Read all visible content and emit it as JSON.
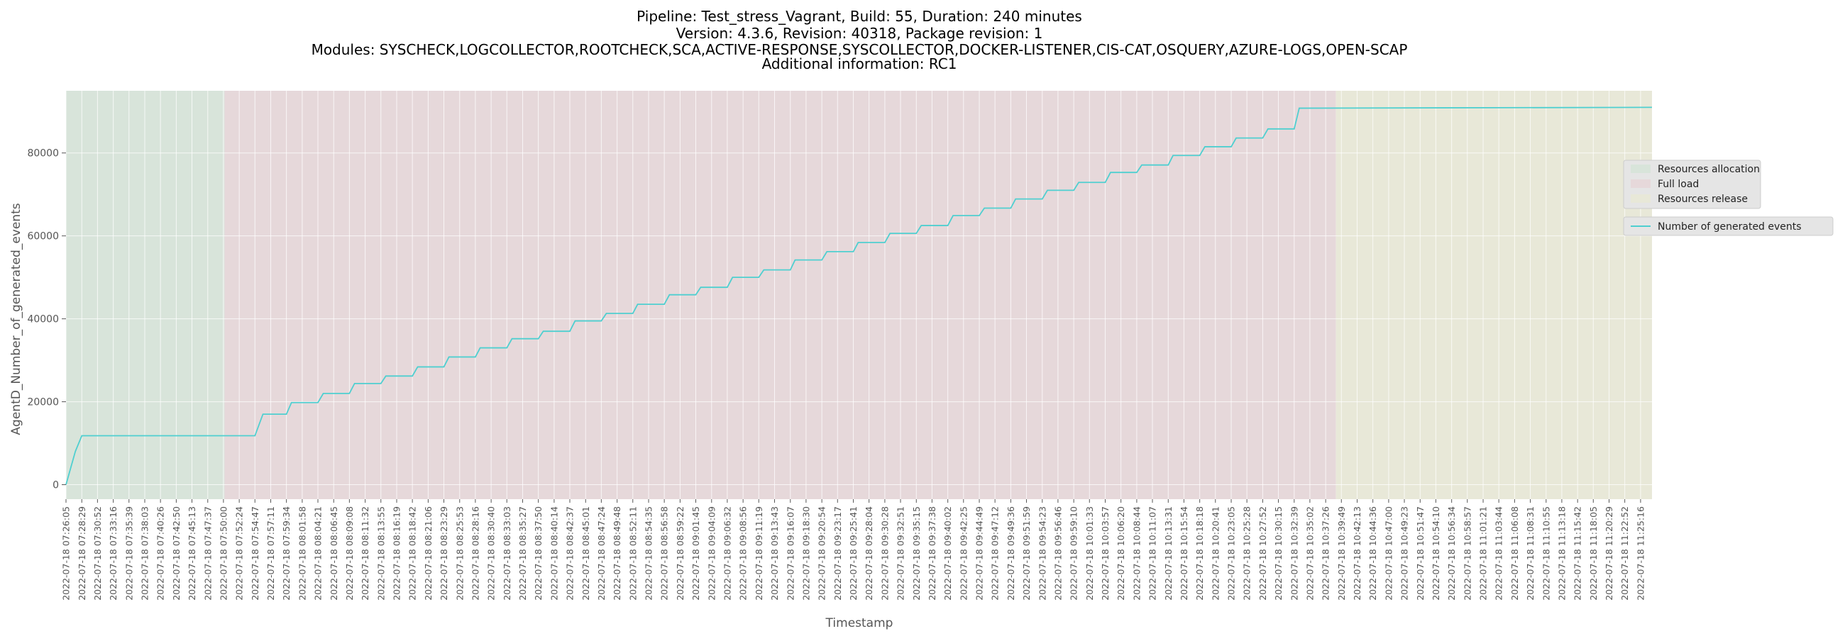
{
  "chart_data": {
    "type": "line",
    "title_lines": [
      "Pipeline: Test_stress_Vagrant, Build: 55, Duration: 240 minutes",
      "Version: 4.3.6, Revision: 40318, Package revision: 1",
      "Modules: SYSCHECK,LOGCOLLECTOR,ROOTCHECK,SCA,ACTIVE-RESPONSE,SYSCOLLECTOR,DOCKER-LISTENER,CIS-CAT,OSQUERY,AZURE-LOGS,OPEN-SCAP",
      "Additional information: RC1"
    ],
    "xlabel": "Timestamp",
    "ylabel": "AgentD_Number_of_generated_events",
    "ylim": [
      -3500,
      95000
    ],
    "y_ticks": [
      0,
      20000,
      40000,
      60000,
      80000
    ],
    "x_range": [
      "2022-07-18 07:26:05",
      "2022-07-18 11:27:00"
    ],
    "x_tick_labels": [
      "2022-07-18 07:26:05",
      "2022-07-18 07:28:29",
      "2022-07-18 07:30:52",
      "2022-07-18 07:33:16",
      "2022-07-18 07:35:39",
      "2022-07-18 07:38:03",
      "2022-07-18 07:40:26",
      "2022-07-18 07:42:50",
      "2022-07-18 07:45:13",
      "2022-07-18 07:47:37",
      "2022-07-18 07:50:00",
      "2022-07-18 07:52:24",
      "2022-07-18 07:54:47",
      "2022-07-18 07:57:11",
      "2022-07-18 07:59:34",
      "2022-07-18 08:01:58",
      "2022-07-18 08:04:21",
      "2022-07-18 08:06:45",
      "2022-07-18 08:09:08",
      "2022-07-18 08:11:32",
      "2022-07-18 08:13:55",
      "2022-07-18 08:16:19",
      "2022-07-18 08:18:42",
      "2022-07-18 08:21:06",
      "2022-07-18 08:23:29",
      "2022-07-18 08:25:53",
      "2022-07-18 08:28:16",
      "2022-07-18 08:30:40",
      "2022-07-18 08:33:03",
      "2022-07-18 08:35:27",
      "2022-07-18 08:37:50",
      "2022-07-18 08:40:14",
      "2022-07-18 08:42:37",
      "2022-07-18 08:45:01",
      "2022-07-18 08:47:24",
      "2022-07-18 08:49:48",
      "2022-07-18 08:52:11",
      "2022-07-18 08:54:35",
      "2022-07-18 08:56:58",
      "2022-07-18 08:59:22",
      "2022-07-18 09:01:45",
      "2022-07-18 09:04:09",
      "2022-07-18 09:06:32",
      "2022-07-18 09:08:56",
      "2022-07-18 09:11:19",
      "2022-07-18 09:13:43",
      "2022-07-18 09:16:07",
      "2022-07-18 09:18:30",
      "2022-07-18 09:20:54",
      "2022-07-18 09:23:17",
      "2022-07-18 09:25:41",
      "2022-07-18 09:28:04",
      "2022-07-18 09:30:28",
      "2022-07-18 09:32:51",
      "2022-07-18 09:35:15",
      "2022-07-18 09:37:38",
      "2022-07-18 09:40:02",
      "2022-07-18 09:42:25",
      "2022-07-18 09:44:49",
      "2022-07-18 09:47:12",
      "2022-07-18 09:49:36",
      "2022-07-18 09:51:59",
      "2022-07-18 09:54:23",
      "2022-07-18 09:56:46",
      "2022-07-18 09:59:10",
      "2022-07-18 10:01:33",
      "2022-07-18 10:03:57",
      "2022-07-18 10:06:20",
      "2022-07-18 10:08:44",
      "2022-07-18 10:11:07",
      "2022-07-18 10:13:31",
      "2022-07-18 10:15:54",
      "2022-07-18 10:18:18",
      "2022-07-18 10:20:41",
      "2022-07-18 10:23:05",
      "2022-07-18 10:25:28",
      "2022-07-18 10:27:52",
      "2022-07-18 10:30:15",
      "2022-07-18 10:32:39",
      "2022-07-18 10:35:02",
      "2022-07-18 10:37:26",
      "2022-07-18 10:39:49",
      "2022-07-18 10:42:13",
      "2022-07-18 10:44:36",
      "2022-07-18 10:47:00",
      "2022-07-18 10:49:23",
      "2022-07-18 10:51:47",
      "2022-07-18 10:54:10",
      "2022-07-18 10:56:34",
      "2022-07-18 10:58:57",
      "2022-07-18 11:01:21",
      "2022-07-18 11:03:44",
      "2022-07-18 11:06:08",
      "2022-07-18 11:08:31",
      "2022-07-18 11:10:55",
      "2022-07-18 11:13:18",
      "2022-07-18 11:15:42",
      "2022-07-18 11:18:05",
      "2022-07-18 11:20:29",
      "2022-07-18 11:22:52",
      "2022-07-18 11:25:16"
    ],
    "phases": [
      {
        "name": "Resources allocation",
        "start": "2022-07-18 07:26:05",
        "end": "2022-07-18 07:50:10",
        "color": "#d8e4da"
      },
      {
        "name": "Full load",
        "start": "2022-07-18 07:50:10",
        "end": "2022-07-18 10:39:00",
        "color": "#e6d8da"
      },
      {
        "name": "Resources release",
        "start": "2022-07-18 10:39:00",
        "end": "2022-07-18 11:27:00",
        "color": "#e8e8d8"
      }
    ],
    "series": [
      {
        "name": "Number of generated events",
        "color": "#4fcfd0",
        "points": [
          [
            "2022-07-18 07:26:05",
            0
          ],
          [
            "2022-07-18 07:27:30",
            8000
          ],
          [
            "2022-07-18 07:28:29",
            11800
          ],
          [
            "2022-07-18 07:54:47",
            11800
          ],
          [
            "2022-07-18 07:56:00",
            17000
          ],
          [
            "2022-07-18 07:59:34",
            17000
          ],
          [
            "2022-07-18 08:00:20",
            19800
          ],
          [
            "2022-07-18 08:04:21",
            19800
          ],
          [
            "2022-07-18 08:05:10",
            22000
          ],
          [
            "2022-07-18 08:09:08",
            22000
          ],
          [
            "2022-07-18 08:09:55",
            24400
          ],
          [
            "2022-07-18 08:13:55",
            24400
          ],
          [
            "2022-07-18 08:14:40",
            26200
          ],
          [
            "2022-07-18 08:18:42",
            26200
          ],
          [
            "2022-07-18 08:19:30",
            28400
          ],
          [
            "2022-07-18 08:23:29",
            28400
          ],
          [
            "2022-07-18 08:24:15",
            30800
          ],
          [
            "2022-07-18 08:28:16",
            30800
          ],
          [
            "2022-07-18 08:29:00",
            33000
          ],
          [
            "2022-07-18 08:33:03",
            33000
          ],
          [
            "2022-07-18 08:33:50",
            35200
          ],
          [
            "2022-07-18 08:37:50",
            35200
          ],
          [
            "2022-07-18 08:38:35",
            37000
          ],
          [
            "2022-07-18 08:42:37",
            37000
          ],
          [
            "2022-07-18 08:43:25",
            39500
          ],
          [
            "2022-07-18 08:47:24",
            39500
          ],
          [
            "2022-07-18 08:48:10",
            41300
          ],
          [
            "2022-07-18 08:52:11",
            41300
          ],
          [
            "2022-07-18 08:52:55",
            43500
          ],
          [
            "2022-07-18 08:56:58",
            43500
          ],
          [
            "2022-07-18 08:57:45",
            45800
          ],
          [
            "2022-07-18 09:01:45",
            45800
          ],
          [
            "2022-07-18 09:02:30",
            47600
          ],
          [
            "2022-07-18 09:06:32",
            47600
          ],
          [
            "2022-07-18 09:07:20",
            50000
          ],
          [
            "2022-07-18 09:11:19",
            50000
          ],
          [
            "2022-07-18 09:12:05",
            51800
          ],
          [
            "2022-07-18 09:16:07",
            51800
          ],
          [
            "2022-07-18 09:16:50",
            54200
          ],
          [
            "2022-07-18 09:20:54",
            54200
          ],
          [
            "2022-07-18 09:21:40",
            56200
          ],
          [
            "2022-07-18 09:25:41",
            56200
          ],
          [
            "2022-07-18 09:26:25",
            58400
          ],
          [
            "2022-07-18 09:30:28",
            58400
          ],
          [
            "2022-07-18 09:31:15",
            60600
          ],
          [
            "2022-07-18 09:35:15",
            60600
          ],
          [
            "2022-07-18 09:36:00",
            62500
          ],
          [
            "2022-07-18 09:40:02",
            62500
          ],
          [
            "2022-07-18 09:40:50",
            64900
          ],
          [
            "2022-07-18 09:44:49",
            64900
          ],
          [
            "2022-07-18 09:45:35",
            66700
          ],
          [
            "2022-07-18 09:49:36",
            66700
          ],
          [
            "2022-07-18 09:50:20",
            68900
          ],
          [
            "2022-07-18 09:54:23",
            68900
          ],
          [
            "2022-07-18 09:55:10",
            71000
          ],
          [
            "2022-07-18 09:59:10",
            71000
          ],
          [
            "2022-07-18 09:59:55",
            72900
          ],
          [
            "2022-07-18 10:03:57",
            72900
          ],
          [
            "2022-07-18 10:04:45",
            75300
          ],
          [
            "2022-07-18 10:08:44",
            75300
          ],
          [
            "2022-07-18 10:09:30",
            77100
          ],
          [
            "2022-07-18 10:13:31",
            77100
          ],
          [
            "2022-07-18 10:14:15",
            79400
          ],
          [
            "2022-07-18 10:18:18",
            79400
          ],
          [
            "2022-07-18 10:19:05",
            81500
          ],
          [
            "2022-07-18 10:23:05",
            81500
          ],
          [
            "2022-07-18 10:23:50",
            83600
          ],
          [
            "2022-07-18 10:27:52",
            83600
          ],
          [
            "2022-07-18 10:28:40",
            85800
          ],
          [
            "2022-07-18 10:32:39",
            85800
          ],
          [
            "2022-07-18 10:33:25",
            90800
          ],
          [
            "2022-07-18 11:27:00",
            91000
          ]
        ]
      }
    ],
    "legend_placement": "right",
    "grid": true
  }
}
